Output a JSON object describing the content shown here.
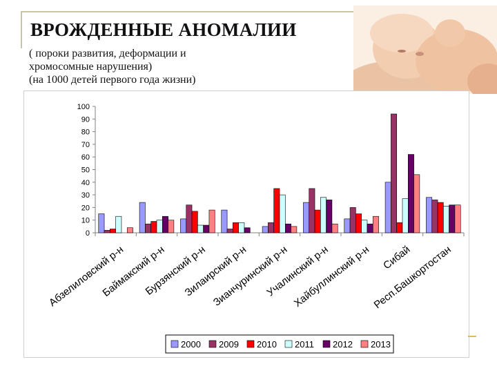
{
  "header": {
    "title": "ВРОЖДЕННЫЕ АНОМАЛИИ",
    "subtitle_line1": "( пороки развития, деформации и",
    "subtitle_line2": "хромосомные нарушения)",
    "subtitle_line3": "(на 1000 детей первого года жизни)"
  },
  "photo": {
    "description_icon": "baby-photo"
  },
  "chart_data": {
    "type": "bar",
    "categories": [
      "Абзелиловский р-н",
      "Баймакский р-н",
      "Бурзянский р-н",
      "Зилаирский р-н",
      "Зианчуринский р-н",
      "Учалинский р-н",
      "Хайбуллинский р-н",
      "Сибай",
      "Респ.Башкортостан"
    ],
    "series": [
      {
        "name": "2000",
        "color": "#9999ff",
        "values": [
          15,
          24,
          11,
          18,
          5,
          24,
          11,
          40,
          28
        ]
      },
      {
        "name": "2009",
        "color": "#993366",
        "values": [
          2,
          7,
          22,
          3,
          8,
          35,
          20,
          94,
          26
        ]
      },
      {
        "name": "2010",
        "color": "#ff0000",
        "values": [
          3,
          9,
          17,
          8,
          35,
          18,
          15,
          8,
          24
        ]
      },
      {
        "name": "2011",
        "color": "#ccffff",
        "values": [
          13,
          10,
          6,
          8,
          30,
          28,
          10,
          27,
          21
        ]
      },
      {
        "name": "2012",
        "color": "#660066",
        "values": [
          0,
          13,
          6,
          4,
          7,
          26,
          7,
          62,
          22
        ]
      },
      {
        "name": "2013",
        "color": "#ff8080",
        "values": [
          4,
          10,
          18,
          0,
          5,
          7,
          13,
          46,
          22
        ]
      }
    ],
    "yticks": [
      "0",
      "10",
      "20",
      "30",
      "40",
      "50",
      "60",
      "70",
      "80",
      "90",
      "100"
    ],
    "ylim": [
      0,
      100
    ],
    "grid": false,
    "legend_position": "bottom"
  }
}
